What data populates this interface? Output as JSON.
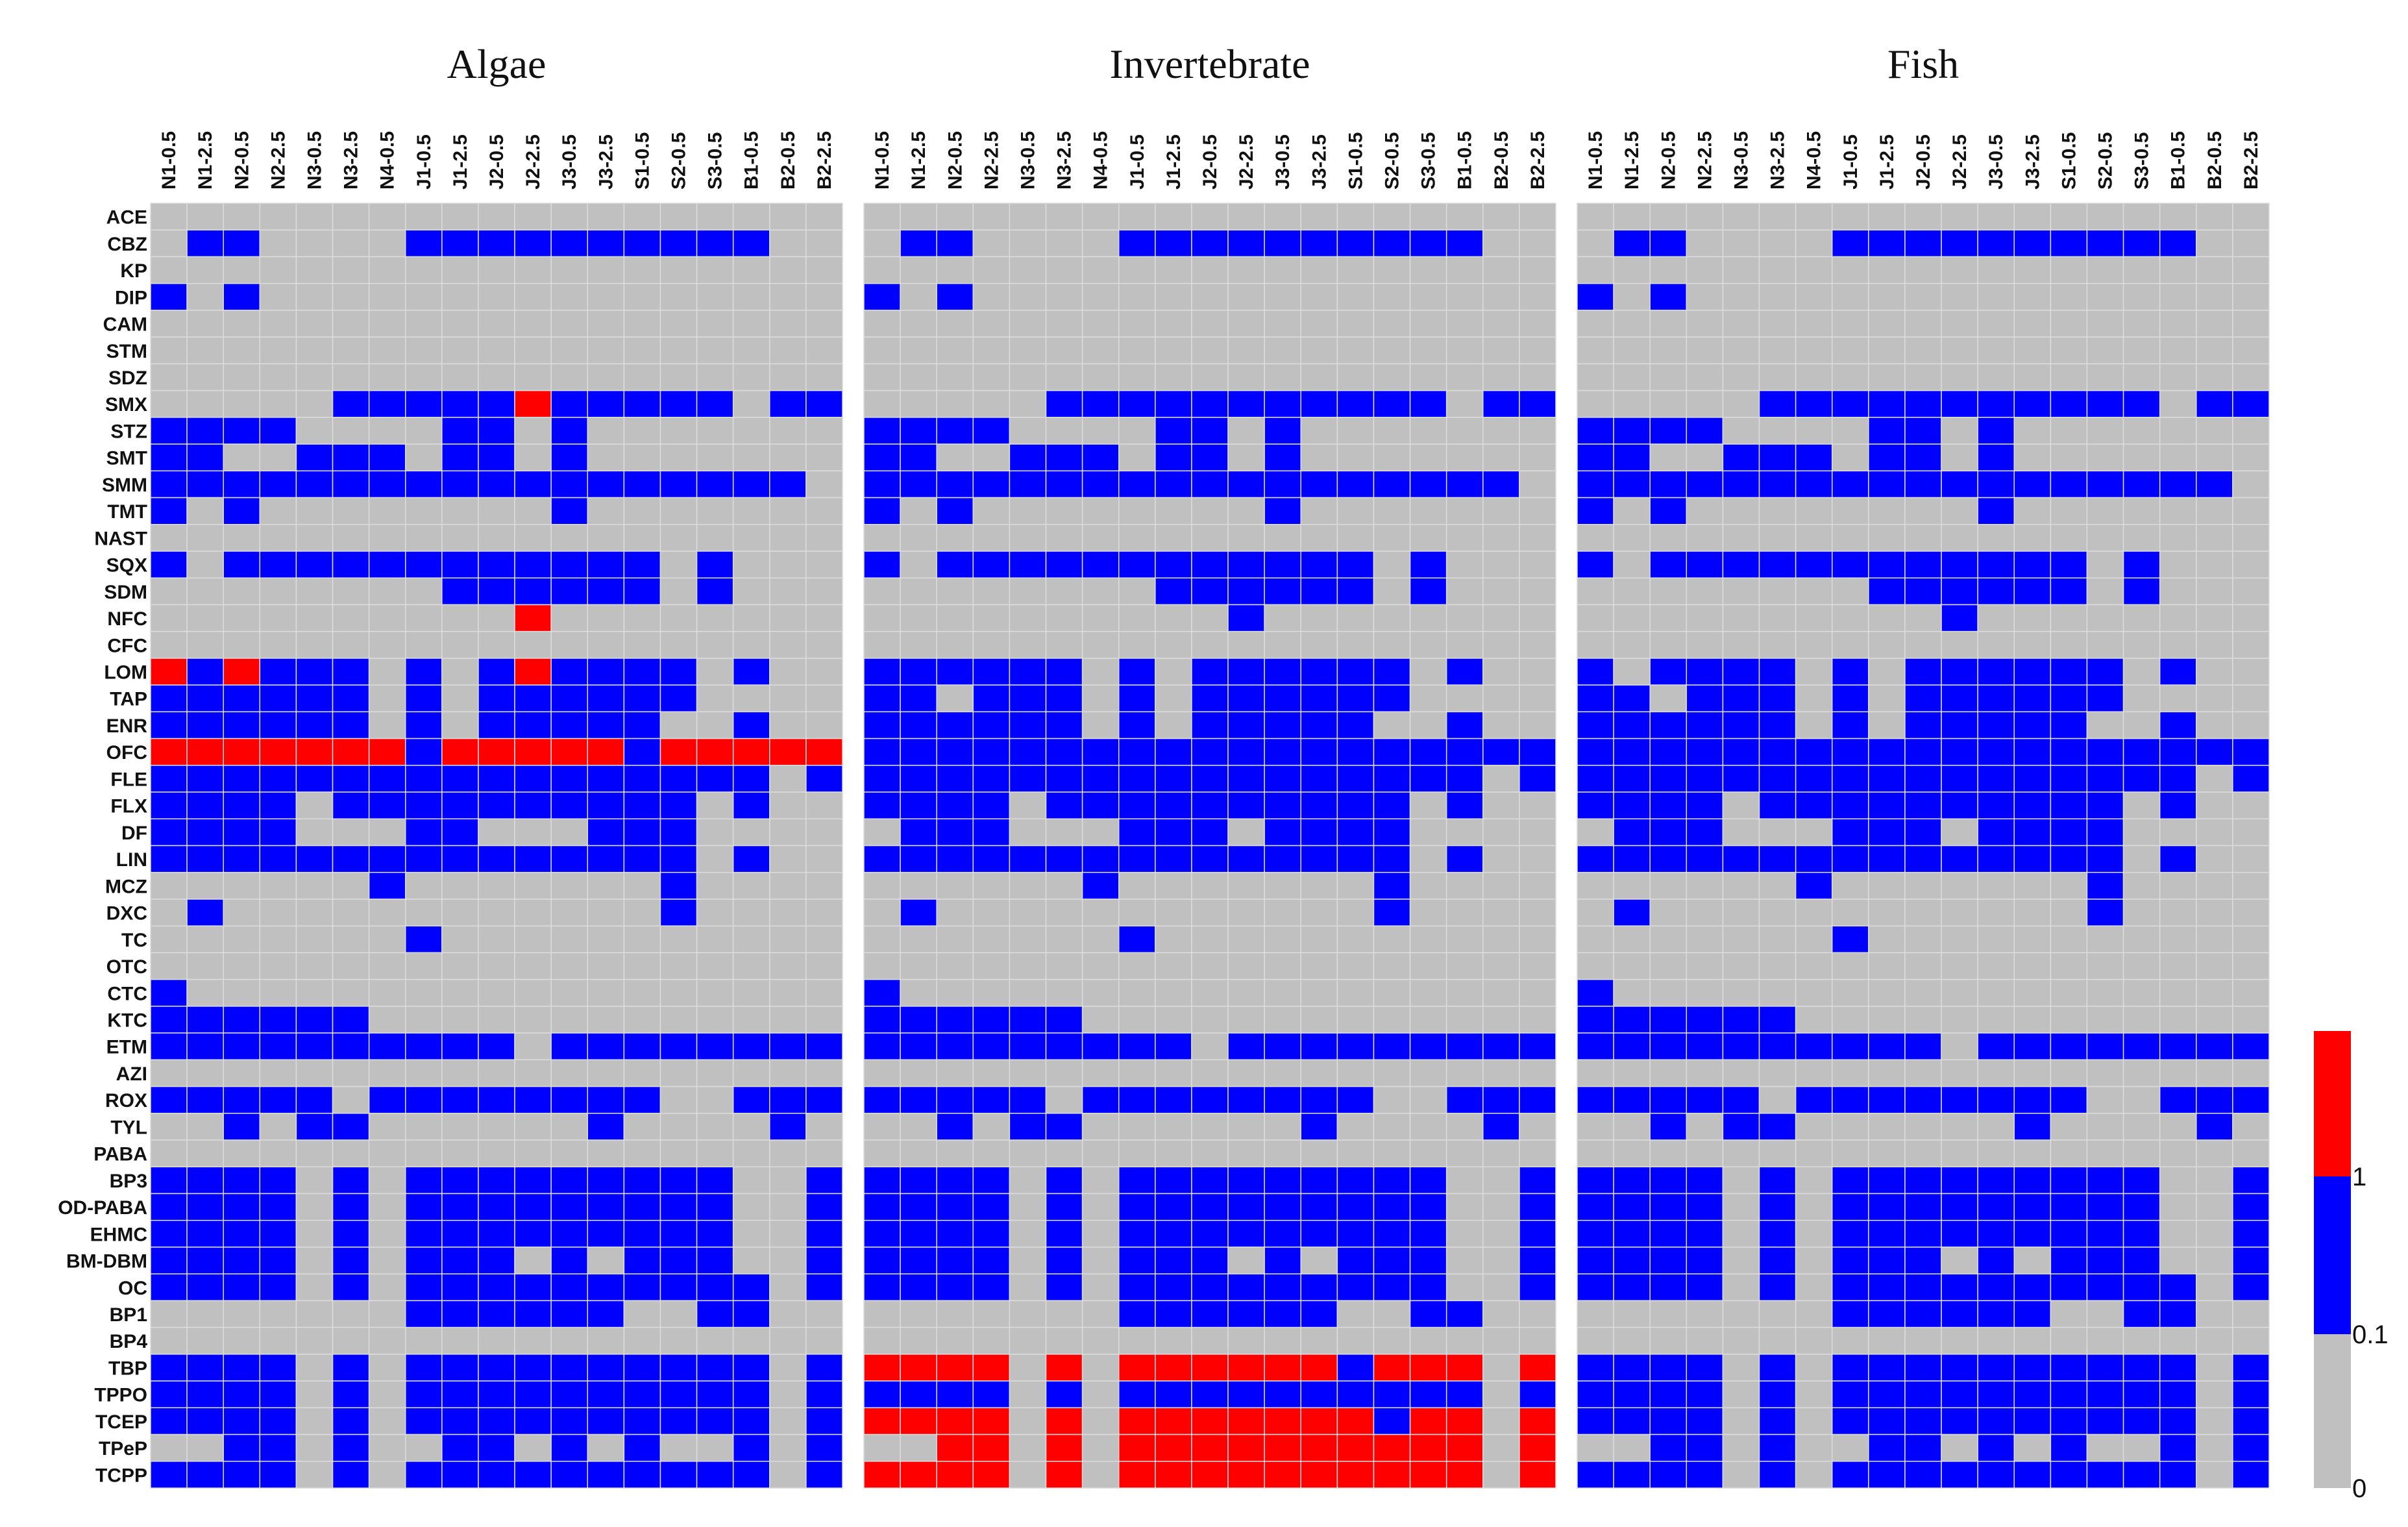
{
  "chart_data": {
    "type": "heatmap",
    "color_scale": {
      "stops": [
        {
          "label": "0",
          "color": "#c0c0c0"
        },
        {
          "label": "0.1",
          "color": "#0000ff"
        },
        {
          "label": "1",
          "color": "#ff0000"
        }
      ]
    },
    "columns": [
      "N1-0.5",
      "N1-2.5",
      "N2-0.5",
      "N2-2.5",
      "N3-0.5",
      "N3-2.5",
      "N4-0.5",
      "J1-0.5",
      "J1-2.5",
      "J2-0.5",
      "J2-2.5",
      "J3-0.5",
      "J3-2.5",
      "S1-0.5",
      "S2-0.5",
      "S3-0.5",
      "B1-0.5",
      "B2-0.5",
      "B2-2.5"
    ],
    "rows": [
      "ACE",
      "CBZ",
      "KP",
      "DIP",
      "CAM",
      "STM",
      "SDZ",
      "SMX",
      "STZ",
      "SMT",
      "SMM",
      "TMT",
      "NAST",
      "SQX",
      "SDM",
      "NFC",
      "CFC",
      "LOM",
      "TAP",
      "ENR",
      "OFC",
      "FLE",
      "FLX",
      "DF",
      "LIN",
      "MCZ",
      "DXC",
      "TC",
      "OTC",
      "CTC",
      "KTC",
      "ETM",
      "AZI",
      "ROX",
      "TYL",
      "PABA",
      "BP3",
      "OD-PABA",
      "EHMC",
      "BM-DBM",
      "OC",
      "BP1",
      "BP4",
      "TBP",
      "TPPO",
      "TCEP",
      "TPeP",
      "TCPP"
    ],
    "panels": [
      {
        "title": "Algae",
        "grid": [
          "0000000000000000000",
          "0110000111111111100",
          "0000000000000000000",
          "1010000000000000000",
          "0000000000000000000",
          "0000000000000000000",
          "0000000000000000000",
          "0000011111211111011",
          "1111000011010000000",
          "1100111011010000000",
          "1111111111111111110",
          "1010000000010000000",
          "0000000000000000000",
          "1011111111111101000",
          "0000000011111101000",
          "0000000000200000000",
          "0000000000000000000",
          "2121110101211110100",
          "1111110101111110000",
          "1111110101111100100",
          "2222222122222122222",
          "1111111111111111101",
          "1111011111111110100",
          "1111000110001110000",
          "1111111111111110100",
          "0000001000000010000",
          "0100000000000010000",
          "0000000100000000000",
          "0000000000000000000",
          "1000000000000000000",
          "1111110000000000000",
          "1111111111011111111",
          "0000000000000000000",
          "1111101111111100111",
          "0010110000001000010",
          "0000000000000000000",
          "1111010111111111001",
          "1111010111111111001",
          "1111010111111111001",
          "1111010111010111001",
          "1111010111111111101",
          "0000000111111001100",
          "0000000000000000000",
          "1111010111111111101",
          "1111010111111111101",
          "1111010111111111101",
          "0011010011010100101",
          "1111010111111111101"
        ]
      },
      {
        "title": "Invertebrate",
        "grid": [
          "0000000000000000000",
          "0110000111111111100",
          "0000000000000000000",
          "1010000000000000000",
          "0000000000000000000",
          "0000000000000000000",
          "0000000000000000000",
          "0000011111111111011",
          "1111000011010000000",
          "1100111011010000000",
          "1111111111111111110",
          "1010000000010000000",
          "0000000000000000000",
          "1011111111111101000",
          "0000000011111101000",
          "0000000000100000000",
          "0000000000000000000",
          "1111110101111110100",
          "1101110101111110000",
          "1111110101111100100",
          "1111111111111111111",
          "1111111111111111101",
          "1111011111111110100",
          "0111000111011110000",
          "1111111111111110100",
          "0000001000000010000",
          "0100000000000010000",
          "0000000100000000000",
          "0000000000000000000",
          "1000000000000000000",
          "1111110000000000000",
          "1111111110111111111",
          "0000000000000000000",
          "1111101111111100111",
          "0010110000001000010",
          "0000000000000000000",
          "1111010111111111001",
          "1111010111111111001",
          "1111010111111111001",
          "1111010111010111001",
          "1111010111111111001",
          "0000000111111001100",
          "0000000000000000000",
          "2222020222222122202",
          "1111010111111111101",
          "2222020222222212202",
          "0022020222222222202",
          "2222020222222222202"
        ]
      },
      {
        "title": "Fish",
        "grid": [
          "0000000000000000000",
          "0110000111111111100",
          "0000000000000000000",
          "1010000000000000000",
          "0000000000000000000",
          "0000000000000000000",
          "0000000000000000000",
          "0000011111111111011",
          "1111000011010000000",
          "1100111011010000000",
          "1111111111111111110",
          "1010000000010000000",
          "0000000000000000000",
          "1011111111111101000",
          "0000000011111101000",
          "0000000000100000000",
          "0000000000000000000",
          "1011110101111110100",
          "1101110101111110000",
          "1111110101111100100",
          "1111111111111111111",
          "1111111111111111101",
          "1111011111111110100",
          "0111000111011110000",
          "1111111111111110100",
          "0000001000000010000",
          "0100000000000010000",
          "0000000100000000000",
          "0000000000000000000",
          "1000000000000000000",
          "1111110000000000000",
          "1111111111011111111",
          "0000000000000000000",
          "1111101111111100111",
          "0010110000001000010",
          "0000000000000000000",
          "1111010111111111001",
          "1111010111111111001",
          "1111010111111111001",
          "1111010111010111001",
          "1111010111111111101",
          "0000000111111001100",
          "0000000000000000000",
          "1111010111111111101",
          "1111010111111111101",
          "1111010111111111101",
          "0011010011010100101",
          "1111010111111111101"
        ]
      }
    ]
  }
}
